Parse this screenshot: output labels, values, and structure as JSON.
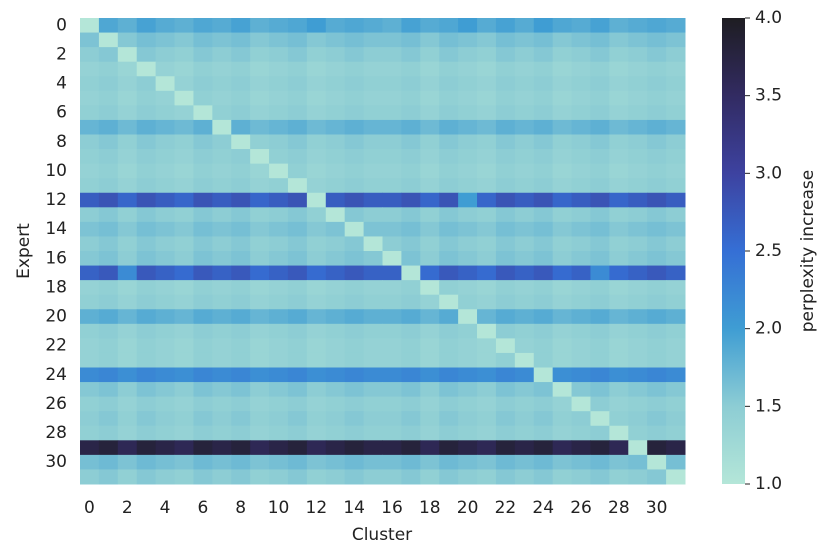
{
  "chart_data": {
    "type": "heatmap",
    "xlabel": "Cluster",
    "ylabel": "Expert",
    "colorbar_label": "perplexity increase",
    "x_categories": [
      0,
      null,
      2,
      null,
      4,
      null,
      6,
      null,
      8,
      null,
      10,
      null,
      12,
      null,
      14,
      null,
      16,
      null,
      18,
      null,
      20,
      null,
      22,
      null,
      24,
      null,
      26,
      null,
      28,
      null,
      30,
      null
    ],
    "y_categories": [
      0,
      null,
      2,
      null,
      4,
      null,
      6,
      null,
      8,
      null,
      10,
      null,
      12,
      null,
      14,
      null,
      16,
      null,
      18,
      null,
      20,
      null,
      22,
      null,
      24,
      null,
      26,
      null,
      28,
      null,
      30,
      null
    ],
    "zlim": [
      1,
      4
    ],
    "zticks": [
      {
        "value": 1,
        "label": "1.0"
      },
      {
        "value": 1.5,
        "label": "1.5"
      },
      {
        "value": 2,
        "label": "2.0"
      },
      {
        "value": 2.5,
        "label": "2.5"
      },
      {
        "value": 3,
        "label": "3.0"
      },
      {
        "value": 3.5,
        "label": "3.5"
      },
      {
        "value": 4,
        "label": "4.0"
      }
    ],
    "colormap": [
      "#b4e6d8",
      "#8dcdd4",
      "#3f9dd3",
      "#356fd5",
      "#3d42a0",
      "#322b62",
      "#1e1d22"
    ],
    "values": [
      [
        1.0,
        1.9,
        1.8,
        1.95,
        1.85,
        1.8,
        1.9,
        1.85,
        1.95,
        1.8,
        1.85,
        1.9,
        2.0,
        1.85,
        1.9,
        1.85,
        1.8,
        1.95,
        1.85,
        1.9,
        2.0,
        1.85,
        1.95,
        1.85,
        2.0,
        1.9,
        1.85,
        1.95,
        1.8,
        1.85,
        1.9,
        1.85
      ],
      [
        1.6,
        1.0,
        1.55,
        1.65,
        1.6,
        1.55,
        1.65,
        1.6,
        1.65,
        1.55,
        1.6,
        1.65,
        1.55,
        1.6,
        1.65,
        1.6,
        1.6,
        1.65,
        1.55,
        1.65,
        1.6,
        1.55,
        1.65,
        1.6,
        1.65,
        1.55,
        1.6,
        1.65,
        1.55,
        1.6,
        1.65,
        1.6
      ],
      [
        1.5,
        1.55,
        1.0,
        1.55,
        1.5,
        1.45,
        1.55,
        1.5,
        1.55,
        1.45,
        1.5,
        1.55,
        1.45,
        1.5,
        1.55,
        1.5,
        1.5,
        1.55,
        1.45,
        1.55,
        1.5,
        1.45,
        1.55,
        1.5,
        1.55,
        1.45,
        1.5,
        1.55,
        1.45,
        1.5,
        1.55,
        1.5
      ],
      [
        1.4,
        1.45,
        1.35,
        1.0,
        1.4,
        1.35,
        1.45,
        1.4,
        1.45,
        1.35,
        1.4,
        1.45,
        1.35,
        1.4,
        1.45,
        1.4,
        1.4,
        1.45,
        1.35,
        1.45,
        1.4,
        1.35,
        1.45,
        1.4,
        1.45,
        1.35,
        1.4,
        1.45,
        1.35,
        1.4,
        1.45,
        1.4
      ],
      [
        1.45,
        1.5,
        1.4,
        1.5,
        1.0,
        1.4,
        1.5,
        1.45,
        1.5,
        1.4,
        1.45,
        1.5,
        1.4,
        1.45,
        1.5,
        1.45,
        1.45,
        1.5,
        1.4,
        1.5,
        1.45,
        1.4,
        1.5,
        1.45,
        1.5,
        1.4,
        1.45,
        1.5,
        1.4,
        1.45,
        1.5,
        1.45
      ],
      [
        1.4,
        1.45,
        1.35,
        1.45,
        1.4,
        1.0,
        1.45,
        1.4,
        1.45,
        1.35,
        1.4,
        1.45,
        1.35,
        1.4,
        1.45,
        1.4,
        1.4,
        1.45,
        1.35,
        1.45,
        1.4,
        1.35,
        1.45,
        1.4,
        1.45,
        1.35,
        1.4,
        1.45,
        1.35,
        1.4,
        1.45,
        1.4
      ],
      [
        1.45,
        1.5,
        1.4,
        1.5,
        1.45,
        1.4,
        1.0,
        1.45,
        1.5,
        1.4,
        1.45,
        1.5,
        1.4,
        1.45,
        1.5,
        1.45,
        1.45,
        1.5,
        1.4,
        1.5,
        1.45,
        1.4,
        1.5,
        1.45,
        1.5,
        1.4,
        1.45,
        1.5,
        1.4,
        1.45,
        1.5,
        1.45
      ],
      [
        1.75,
        1.8,
        1.7,
        1.8,
        1.75,
        1.7,
        1.8,
        1.0,
        1.8,
        1.7,
        1.75,
        1.8,
        1.7,
        1.75,
        1.8,
        1.75,
        1.75,
        1.8,
        1.7,
        1.8,
        1.75,
        1.7,
        1.8,
        1.75,
        1.8,
        1.7,
        1.75,
        1.8,
        1.7,
        1.75,
        1.8,
        1.75
      ],
      [
        1.5,
        1.55,
        1.45,
        1.55,
        1.5,
        1.45,
        1.55,
        1.5,
        1.0,
        1.45,
        1.5,
        1.55,
        1.45,
        1.5,
        1.55,
        1.5,
        1.5,
        1.55,
        1.45,
        1.55,
        1.5,
        1.45,
        1.55,
        1.5,
        1.55,
        1.45,
        1.5,
        1.55,
        1.45,
        1.5,
        1.55,
        1.5
      ],
      [
        1.45,
        1.5,
        1.4,
        1.5,
        1.45,
        1.4,
        1.5,
        1.45,
        1.5,
        1.0,
        1.45,
        1.5,
        1.4,
        1.45,
        1.5,
        1.45,
        1.45,
        1.5,
        1.4,
        1.5,
        1.45,
        1.4,
        1.5,
        1.45,
        1.5,
        1.4,
        1.45,
        1.5,
        1.4,
        1.45,
        1.5,
        1.45
      ],
      [
        1.4,
        1.45,
        1.35,
        1.45,
        1.4,
        1.35,
        1.45,
        1.4,
        1.45,
        1.35,
        1.0,
        1.45,
        1.35,
        1.4,
        1.45,
        1.4,
        1.4,
        1.45,
        1.35,
        1.45,
        1.4,
        1.35,
        1.45,
        1.4,
        1.45,
        1.35,
        1.4,
        1.45,
        1.35,
        1.4,
        1.45,
        1.4
      ],
      [
        1.45,
        1.5,
        1.4,
        1.5,
        1.45,
        1.4,
        1.5,
        1.45,
        1.5,
        1.4,
        1.45,
        1.0,
        1.4,
        1.45,
        1.5,
        1.45,
        1.45,
        1.5,
        1.4,
        1.5,
        1.45,
        1.4,
        1.5,
        1.45,
        1.5,
        1.4,
        1.45,
        1.5,
        1.4,
        1.45,
        1.5,
        1.45
      ],
      [
        2.7,
        2.8,
        2.6,
        2.8,
        2.7,
        2.6,
        2.8,
        2.7,
        2.8,
        2.6,
        2.7,
        2.8,
        1.0,
        2.7,
        2.8,
        2.7,
        2.7,
        2.8,
        2.6,
        2.8,
        2.0,
        2.6,
        2.8,
        2.7,
        2.8,
        2.6,
        2.7,
        2.8,
        2.6,
        2.7,
        2.8,
        2.7
      ],
      [
        1.5,
        1.55,
        1.45,
        1.55,
        1.5,
        1.45,
        1.55,
        1.5,
        1.55,
        1.45,
        1.5,
        1.55,
        1.45,
        1.0,
        1.55,
        1.5,
        1.5,
        1.55,
        1.45,
        1.55,
        1.5,
        1.45,
        1.55,
        1.5,
        1.55,
        1.45,
        1.5,
        1.55,
        1.45,
        1.5,
        1.55,
        1.5
      ],
      [
        1.6,
        1.65,
        1.55,
        1.65,
        1.6,
        1.55,
        1.65,
        1.6,
        1.65,
        1.55,
        1.6,
        1.65,
        1.55,
        1.6,
        1.0,
        1.6,
        1.6,
        1.65,
        1.55,
        1.65,
        1.6,
        1.55,
        1.65,
        1.6,
        1.65,
        1.55,
        1.6,
        1.65,
        1.55,
        1.6,
        1.65,
        1.6
      ],
      [
        1.5,
        1.55,
        1.45,
        1.55,
        1.5,
        1.45,
        1.55,
        1.5,
        1.55,
        1.45,
        1.5,
        1.55,
        1.45,
        1.5,
        1.55,
        1.0,
        1.5,
        1.55,
        1.45,
        1.55,
        1.5,
        1.45,
        1.55,
        1.5,
        1.55,
        1.45,
        1.5,
        1.55,
        1.45,
        1.5,
        1.55,
        1.5
      ],
      [
        1.55,
        1.6,
        1.5,
        1.6,
        1.55,
        1.5,
        1.6,
        1.55,
        1.6,
        1.5,
        1.55,
        1.6,
        1.5,
        1.55,
        1.6,
        1.55,
        1.0,
        1.6,
        1.5,
        1.6,
        1.55,
        1.5,
        1.6,
        1.55,
        1.6,
        1.5,
        1.55,
        1.6,
        1.5,
        1.55,
        1.6,
        1.55
      ],
      [
        2.65,
        2.75,
        2.2,
        2.75,
        2.65,
        2.55,
        2.75,
        2.65,
        2.75,
        2.55,
        2.65,
        2.75,
        2.55,
        2.65,
        2.75,
        2.65,
        2.65,
        1.0,
        2.55,
        2.75,
        2.65,
        2.55,
        2.75,
        2.65,
        2.75,
        2.55,
        2.65,
        2.2,
        2.55,
        2.65,
        2.75,
        2.65
      ],
      [
        1.4,
        1.45,
        1.35,
        1.45,
        1.4,
        1.35,
        1.45,
        1.4,
        1.45,
        1.35,
        1.4,
        1.45,
        1.35,
        1.4,
        1.45,
        1.4,
        1.4,
        1.45,
        1.0,
        1.45,
        1.4,
        1.35,
        1.45,
        1.4,
        1.45,
        1.35,
        1.4,
        1.45,
        1.35,
        1.4,
        1.45,
        1.4
      ],
      [
        1.45,
        1.5,
        1.4,
        1.5,
        1.45,
        1.4,
        1.5,
        1.45,
        1.5,
        1.4,
        1.45,
        1.5,
        1.4,
        1.45,
        1.5,
        1.45,
        1.45,
        1.5,
        1.4,
        1.0,
        1.45,
        1.4,
        1.5,
        1.45,
        1.5,
        1.4,
        1.45,
        1.5,
        1.4,
        1.45,
        1.5,
        1.45
      ],
      [
        1.8,
        1.85,
        1.75,
        1.85,
        1.8,
        1.75,
        1.85,
        1.8,
        1.85,
        1.75,
        1.8,
        1.85,
        1.75,
        1.8,
        1.85,
        1.8,
        1.8,
        1.85,
        1.75,
        1.85,
        1.0,
        1.75,
        1.85,
        1.8,
        1.85,
        1.75,
        1.8,
        1.85,
        1.75,
        1.8,
        1.85,
        1.8
      ],
      [
        1.45,
        1.5,
        1.4,
        1.5,
        1.45,
        1.4,
        1.5,
        1.45,
        1.5,
        1.4,
        1.45,
        1.5,
        1.4,
        1.45,
        1.5,
        1.45,
        1.45,
        1.5,
        1.4,
        1.5,
        1.45,
        1.0,
        1.5,
        1.45,
        1.5,
        1.4,
        1.45,
        1.5,
        1.4,
        1.45,
        1.5,
        1.45
      ],
      [
        1.4,
        1.45,
        1.35,
        1.45,
        1.4,
        1.35,
        1.45,
        1.4,
        1.45,
        1.35,
        1.4,
        1.45,
        1.35,
        1.4,
        1.45,
        1.4,
        1.4,
        1.45,
        1.35,
        1.45,
        1.4,
        1.35,
        1.0,
        1.4,
        1.45,
        1.35,
        1.4,
        1.45,
        1.35,
        1.4,
        1.45,
        1.4
      ],
      [
        1.4,
        1.45,
        1.35,
        1.45,
        1.4,
        1.35,
        1.45,
        1.4,
        1.45,
        1.35,
        1.4,
        1.45,
        1.35,
        1.4,
        1.45,
        1.4,
        1.4,
        1.45,
        1.35,
        1.45,
        1.4,
        1.35,
        1.45,
        1.0,
        1.45,
        1.35,
        1.4,
        1.45,
        1.35,
        1.4,
        1.45,
        1.4
      ],
      [
        2.2,
        2.25,
        2.15,
        2.25,
        2.2,
        2.15,
        2.25,
        2.2,
        2.25,
        2.15,
        2.2,
        2.25,
        2.15,
        2.2,
        2.25,
        2.2,
        2.2,
        2.25,
        2.15,
        2.25,
        2.2,
        2.15,
        2.25,
        2.2,
        1.0,
        2.15,
        2.2,
        2.25,
        2.15,
        2.2,
        2.25,
        2.2
      ],
      [
        1.55,
        1.6,
        1.5,
        1.6,
        1.55,
        1.5,
        1.6,
        1.55,
        1.6,
        1.5,
        1.55,
        1.6,
        1.5,
        1.55,
        1.6,
        1.55,
        1.55,
        1.6,
        1.5,
        1.6,
        1.55,
        1.5,
        1.6,
        1.55,
        1.6,
        1.0,
        1.55,
        1.6,
        1.5,
        1.55,
        1.6,
        1.55
      ],
      [
        1.45,
        1.5,
        1.4,
        1.5,
        1.45,
        1.4,
        1.5,
        1.45,
        1.5,
        1.4,
        1.45,
        1.5,
        1.4,
        1.45,
        1.5,
        1.45,
        1.45,
        1.5,
        1.4,
        1.5,
        1.45,
        1.4,
        1.5,
        1.45,
        1.5,
        1.4,
        1.0,
        1.5,
        1.4,
        1.45,
        1.5,
        1.45
      ],
      [
        1.5,
        1.55,
        1.45,
        1.55,
        1.5,
        1.45,
        1.55,
        1.5,
        1.55,
        1.45,
        1.5,
        1.55,
        1.45,
        1.5,
        1.55,
        1.5,
        1.5,
        1.55,
        1.45,
        1.55,
        1.5,
        1.45,
        1.55,
        1.5,
        1.55,
        1.45,
        1.5,
        1.0,
        1.45,
        1.5,
        1.55,
        1.5
      ],
      [
        1.45,
        1.5,
        1.4,
        1.5,
        1.45,
        1.4,
        1.5,
        1.45,
        1.5,
        1.4,
        1.45,
        1.5,
        1.4,
        1.45,
        1.5,
        1.45,
        1.45,
        1.5,
        1.4,
        1.5,
        1.45,
        1.4,
        1.5,
        1.45,
        1.5,
        1.4,
        1.45,
        1.5,
        1.0,
        1.45,
        1.5,
        1.45
      ],
      [
        3.7,
        3.8,
        3.6,
        3.8,
        3.7,
        3.6,
        3.8,
        3.7,
        3.8,
        3.6,
        3.7,
        3.8,
        3.6,
        3.7,
        3.8,
        3.7,
        3.7,
        3.8,
        3.6,
        3.8,
        3.7,
        3.6,
        3.8,
        3.7,
        3.8,
        3.6,
        3.7,
        3.8,
        3.6,
        1.0,
        3.8,
        3.7
      ],
      [
        1.65,
        1.7,
        1.6,
        1.7,
        1.65,
        1.6,
        1.7,
        1.65,
        1.7,
        1.6,
        1.65,
        1.7,
        1.6,
        1.65,
        1.7,
        1.65,
        1.65,
        1.7,
        1.6,
        1.7,
        1.65,
        1.6,
        1.7,
        1.65,
        1.7,
        1.6,
        1.65,
        1.7,
        1.6,
        1.65,
        1.0,
        1.65
      ],
      [
        1.5,
        1.55,
        1.45,
        1.55,
        1.5,
        1.45,
        1.55,
        1.5,
        1.55,
        1.45,
        1.5,
        1.55,
        1.45,
        1.5,
        1.55,
        1.5,
        1.5,
        1.55,
        1.45,
        1.55,
        1.5,
        1.45,
        1.55,
        1.5,
        1.55,
        1.45,
        1.5,
        1.55,
        1.45,
        1.5,
        1.55,
        1.0
      ]
    ]
  }
}
